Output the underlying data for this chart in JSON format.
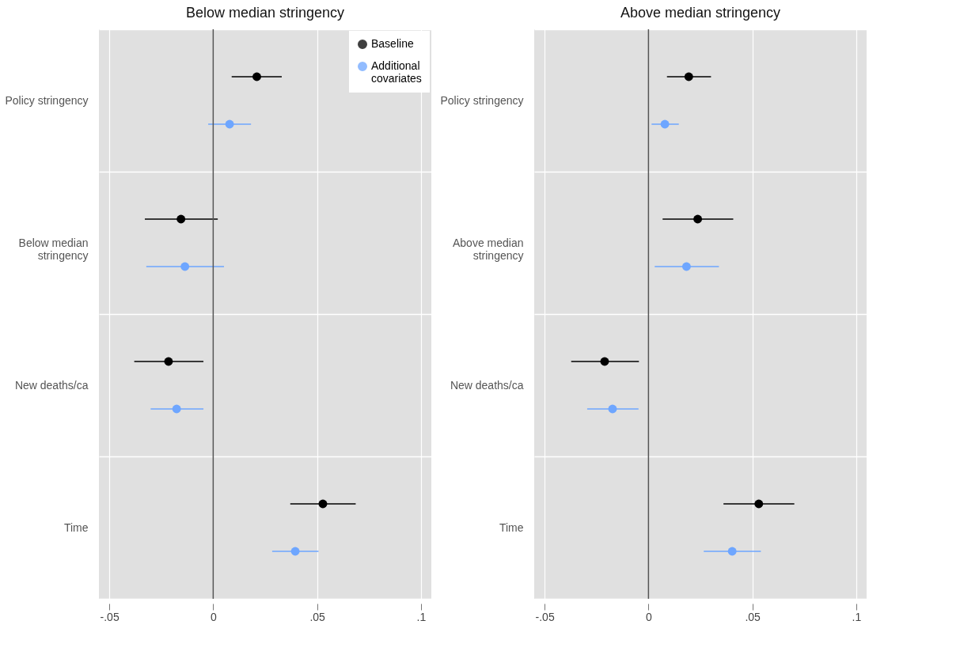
{
  "chart_data": [
    {
      "type": "scatter",
      "orientation": "horizontal",
      "title": "Below median stringency",
      "categories": [
        "Policy stringency",
        "Below median stringency",
        "New deaths/ca",
        "Time"
      ],
      "series": [
        {
          "name": "Baseline",
          "color": "#000000",
          "values": [
            0.021,
            -0.0155,
            -0.0215,
            0.0528
          ],
          "errors": [
            [
              0.0089,
              0.033
            ],
            [
              -0.0329,
              0.0022
            ],
            [
              -0.038,
              -0.0047
            ],
            [
              0.0371,
              0.0686
            ]
          ]
        },
        {
          "name": "Additional covariates",
          "color": "#6ea6ff",
          "values": [
            0.0079,
            -0.0136,
            -0.0176,
            0.0395
          ],
          "errors": [
            [
              -0.0024,
              0.0182
            ],
            [
              -0.0322,
              0.0052
            ],
            [
              -0.0301,
              -0.0047
            ],
            [
              0.0284,
              0.0507
            ]
          ]
        }
      ],
      "xlim": [
        -0.055,
        0.105
      ],
      "xticks": [
        {
          "value": -0.05,
          "label": "-.05"
        },
        0,
        {
          "value": 0.05,
          "label": ".05"
        },
        {
          "value": 0.1,
          "label": ".1"
        }
      ],
      "ref_lines": [
        {
          "axis": "x",
          "value": 0,
          "color": "#555555"
        }
      ],
      "grid": true,
      "legend": "top right",
      "marker": "circle"
    },
    {
      "type": "scatter",
      "orientation": "horizontal",
      "title": "Above median stringency",
      "categories": [
        "Policy stringency",
        "Above median stringency",
        "New deaths/ca",
        "Time"
      ],
      "series": [
        {
          "name": "Baseline",
          "color": "#000000",
          "values": [
            0.0194,
            0.0237,
            -0.0211,
            0.0531
          ],
          "errors": [
            [
              0.0089,
              0.0301
            ],
            [
              0.0068,
              0.0408
            ],
            [
              -0.0372,
              -0.0046
            ],
            [
              0.0361,
              0.0702
            ]
          ]
        },
        {
          "name": "Additional covariates",
          "color": "#6ea6ff",
          "values": [
            0.0079,
            0.0183,
            -0.0173,
            0.0403
          ],
          "errors": [
            [
              0.0015,
              0.0146
            ],
            [
              0.003,
              0.0339
            ],
            [
              -0.0295,
              -0.0048
            ],
            [
              0.0266,
              0.0541
            ]
          ]
        }
      ],
      "xlim": [
        -0.055,
        0.105
      ],
      "xticks": [
        {
          "value": -0.05,
          "label": "-.05"
        },
        0,
        {
          "value": 0.05,
          "label": ".05"
        },
        {
          "value": 0.1,
          "label": ".1"
        }
      ],
      "ref_lines": [
        {
          "axis": "x",
          "value": 0,
          "color": "#555555"
        }
      ],
      "grid": true,
      "legend": false,
      "marker": "circle"
    }
  ]
}
